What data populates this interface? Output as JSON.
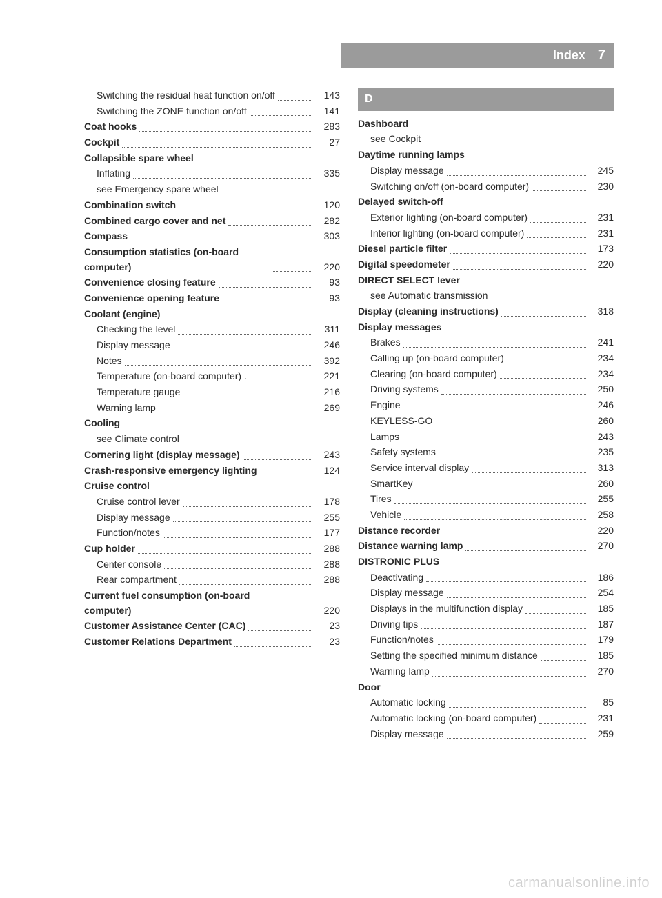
{
  "header": {
    "title": "Index",
    "page": "7"
  },
  "colors": {
    "bar_bg": "#9b9b9b",
    "bar_fg": "#ffffff",
    "text": "#2b2b2b",
    "dots": "#666666",
    "watermark": "rgba(0,0,0,0.18)"
  },
  "left": [
    {
      "label": "Switching the residual heat function on/off",
      "page": "143",
      "sub": true,
      "wrap": true
    },
    {
      "label": "Switching the ZONE function on/off",
      "page": "141",
      "sub": true,
      "wrap": true
    },
    {
      "label": "Coat hooks",
      "page": "283",
      "bold": true
    },
    {
      "label": "Cockpit",
      "page": "27",
      "bold": true
    },
    {
      "label": "Collapsible spare wheel",
      "bold": true,
      "nopage": true
    },
    {
      "label": "Inflating",
      "page": "335",
      "sub": true
    },
    {
      "label": "see Emergency spare wheel",
      "sub": true,
      "nodots": true,
      "nopage": true
    },
    {
      "label": "Combination switch",
      "page": "120",
      "bold": true
    },
    {
      "label": "Combined cargo cover and net",
      "page": "282",
      "bold": true
    },
    {
      "label": "Compass",
      "page": "303",
      "bold": true
    },
    {
      "label": "Consumption statistics (on-board computer)",
      "page": "220",
      "bold": true,
      "wrap": true
    },
    {
      "label": "Convenience closing feature",
      "page": "93",
      "bold": true
    },
    {
      "label": "Convenience opening feature",
      "page": "93",
      "bold": true
    },
    {
      "label": "Coolant (engine)",
      "bold": true,
      "nopage": true
    },
    {
      "label": "Checking the level",
      "page": "311",
      "sub": true
    },
    {
      "label": "Display message",
      "page": "246",
      "sub": true
    },
    {
      "label": "Notes",
      "page": "392",
      "sub": true
    },
    {
      "label": "Temperature (on-board computer) .",
      "page": "221",
      "sub": true,
      "nodots": true
    },
    {
      "label": "Temperature gauge",
      "page": "216",
      "sub": true
    },
    {
      "label": "Warning lamp",
      "page": "269",
      "sub": true
    },
    {
      "label": "Cooling",
      "bold": true,
      "nopage": true
    },
    {
      "label": "see Climate control",
      "sub": true,
      "nodots": true,
      "nopage": true
    },
    {
      "label": "Cornering light (display message)",
      "page": "243",
      "bold": true
    },
    {
      "label": "Crash-responsive emergency lighting",
      "page": "124",
      "bold": true,
      "wrap": true
    },
    {
      "label": "Cruise control",
      "bold": true,
      "nopage": true
    },
    {
      "label": "Cruise control lever",
      "page": "178",
      "sub": true
    },
    {
      "label": "Display message",
      "page": "255",
      "sub": true
    },
    {
      "label": "Function/notes",
      "page": "177",
      "sub": true
    },
    {
      "label": "Cup holder",
      "page": "288",
      "bold": true
    },
    {
      "label": "Center console",
      "page": "288",
      "sub": true
    },
    {
      "label": "Rear compartment",
      "page": "288",
      "sub": true
    },
    {
      "label": "Current fuel consumption (on-board computer)",
      "page": "220",
      "bold": true,
      "wrap": true
    },
    {
      "label": "Customer Assistance Center (CAC)",
      "page": "23",
      "bold": true,
      "wrap": true
    },
    {
      "label": "Customer Relations Department",
      "page": "23",
      "bold": true
    }
  ],
  "right_letter": "D",
  "right": [
    {
      "label": "Dashboard",
      "bold": true,
      "nopage": true
    },
    {
      "label": "see Cockpit",
      "sub": true,
      "nodots": true,
      "nopage": true
    },
    {
      "label": "Daytime running lamps",
      "bold": true,
      "nopage": true
    },
    {
      "label": "Display message",
      "page": "245",
      "sub": true
    },
    {
      "label": "Switching on/off (on-board computer)",
      "page": "230",
      "sub": true,
      "wrap": true
    },
    {
      "label": "Delayed switch-off",
      "bold": true,
      "nopage": true
    },
    {
      "label": "Exterior lighting (on-board computer)",
      "page": "231",
      "sub": true,
      "wrap": true
    },
    {
      "label": "Interior lighting (on-board computer)",
      "page": "231",
      "sub": true,
      "wrap": true
    },
    {
      "label": "Diesel particle filter",
      "page": "173",
      "bold": true
    },
    {
      "label": "Digital speedometer",
      "page": "220",
      "bold": true
    },
    {
      "label": "DIRECT SELECT lever",
      "bold": true,
      "nopage": true
    },
    {
      "label": "see Automatic transmission",
      "sub": true,
      "nodots": true,
      "nopage": true
    },
    {
      "label": "Display (cleaning instructions)",
      "page": "318",
      "bold": true
    },
    {
      "label": "Display messages",
      "bold": true,
      "nopage": true
    },
    {
      "label": "Brakes",
      "page": "241",
      "sub": true
    },
    {
      "label": "Calling up (on-board computer)",
      "page": "234",
      "sub": true
    },
    {
      "label": "Clearing (on-board computer)",
      "page": "234",
      "sub": true
    },
    {
      "label": "Driving systems",
      "page": "250",
      "sub": true
    },
    {
      "label": "Engine",
      "page": "246",
      "sub": true
    },
    {
      "label": "KEYLESS-GO",
      "page": "260",
      "sub": true
    },
    {
      "label": "Lamps",
      "page": "243",
      "sub": true
    },
    {
      "label": "Safety systems",
      "page": "235",
      "sub": true
    },
    {
      "label": "Service interval display",
      "page": "313",
      "sub": true
    },
    {
      "label": "SmartKey",
      "page": "260",
      "sub": true
    },
    {
      "label": "Tires",
      "page": "255",
      "sub": true
    },
    {
      "label": "Vehicle",
      "page": "258",
      "sub": true
    },
    {
      "label": "Distance recorder",
      "page": "220",
      "bold": true
    },
    {
      "label": "Distance warning lamp",
      "page": "270",
      "bold": true
    },
    {
      "label": "DISTRONIC PLUS",
      "bold": true,
      "nopage": true
    },
    {
      "label": "Deactivating",
      "page": "186",
      "sub": true
    },
    {
      "label": "Display message",
      "page": "254",
      "sub": true
    },
    {
      "label": "Displays in the multifunction display",
      "page": "185",
      "sub": true,
      "wrap": true
    },
    {
      "label": "Driving tips",
      "page": "187",
      "sub": true
    },
    {
      "label": "Function/notes",
      "page": "179",
      "sub": true
    },
    {
      "label": "Setting the specified minimum distance",
      "page": "185",
      "sub": true,
      "wrap": true
    },
    {
      "label": "Warning lamp",
      "page": "270",
      "sub": true
    },
    {
      "label": "Door",
      "bold": true,
      "nopage": true
    },
    {
      "label": "Automatic locking",
      "page": "85",
      "sub": true
    },
    {
      "label": "Automatic locking (on-board computer)",
      "page": "231",
      "sub": true,
      "wrap": true
    },
    {
      "label": "Display message",
      "page": "259",
      "sub": true
    }
  ],
  "watermark": "carmanualsonline.info"
}
